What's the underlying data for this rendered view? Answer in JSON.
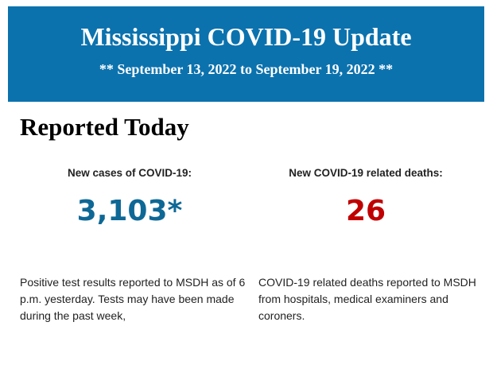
{
  "header": {
    "title": "Mississippi COVID-19 Update",
    "date_range": "** September 13, 2022 to September 19, 2022 **",
    "background_color": "#0b72ae"
  },
  "section_title": "Reported Today",
  "cases": {
    "label": "New cases of COVID-19:",
    "value": "3,103*",
    "color": "#0e6896",
    "description": "Positive test results reported to MSDH as of 6 p.m. yesterday. Tests may have been made during the past week,"
  },
  "deaths": {
    "label": "New COVID-19 related deaths:",
    "value": "26",
    "color": "#c00000",
    "description": "COVID-19 related deaths reported to MSDH from hospitals, medical examiners and coroners."
  }
}
